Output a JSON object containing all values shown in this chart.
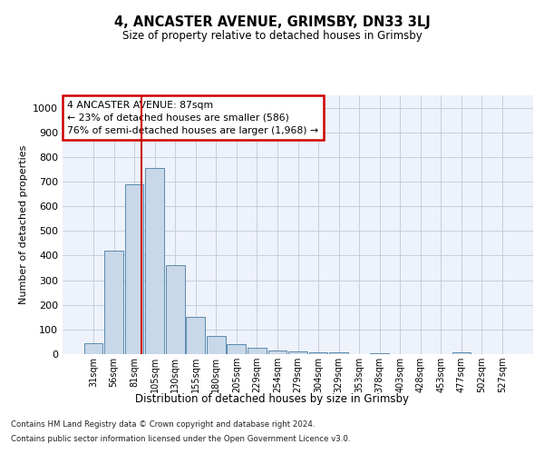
{
  "title_line1": "4, ANCASTER AVENUE, GRIMSBY, DN33 3LJ",
  "title_line2": "Size of property relative to detached houses in Grimsby",
  "xlabel": "Distribution of detached houses by size in Grimsby",
  "ylabel": "Number of detached properties",
  "bar_labels": [
    "31sqm",
    "56sqm",
    "81sqm",
    "105sqm",
    "130sqm",
    "155sqm",
    "180sqm",
    "205sqm",
    "229sqm",
    "254sqm",
    "279sqm",
    "304sqm",
    "329sqm",
    "353sqm",
    "378sqm",
    "403sqm",
    "428sqm",
    "453sqm",
    "477sqm",
    "502sqm",
    "527sqm"
  ],
  "bar_values": [
    45,
    420,
    690,
    755,
    360,
    150,
    73,
    40,
    26,
    15,
    12,
    8,
    6,
    0,
    5,
    0,
    0,
    0,
    6,
    0,
    0
  ],
  "bar_color": "#c8d8e8",
  "bar_edge_color": "#5a8ab0",
  "grid_color": "#c0c8dc",
  "background_color": "#eef2fa",
  "property_label": "4 ANCASTER AVENUE: 87sqm",
  "annotation_line1": "← 23% of detached houses are smaller (586)",
  "annotation_line2": "76% of semi-detached houses are larger (1,968) →",
  "vline_color": "#cc0000",
  "annotation_box_color": "#ffffff",
  "annotation_box_edge": "#cc0000",
  "footer_line1": "Contains HM Land Registry data © Crown copyright and database right 2024.",
  "footer_line2": "Contains public sector information licensed under the Open Government Licence v3.0.",
  "ylim": [
    0,
    1050
  ],
  "yticks": [
    0,
    100,
    200,
    300,
    400,
    500,
    600,
    700,
    800,
    900,
    1000
  ]
}
